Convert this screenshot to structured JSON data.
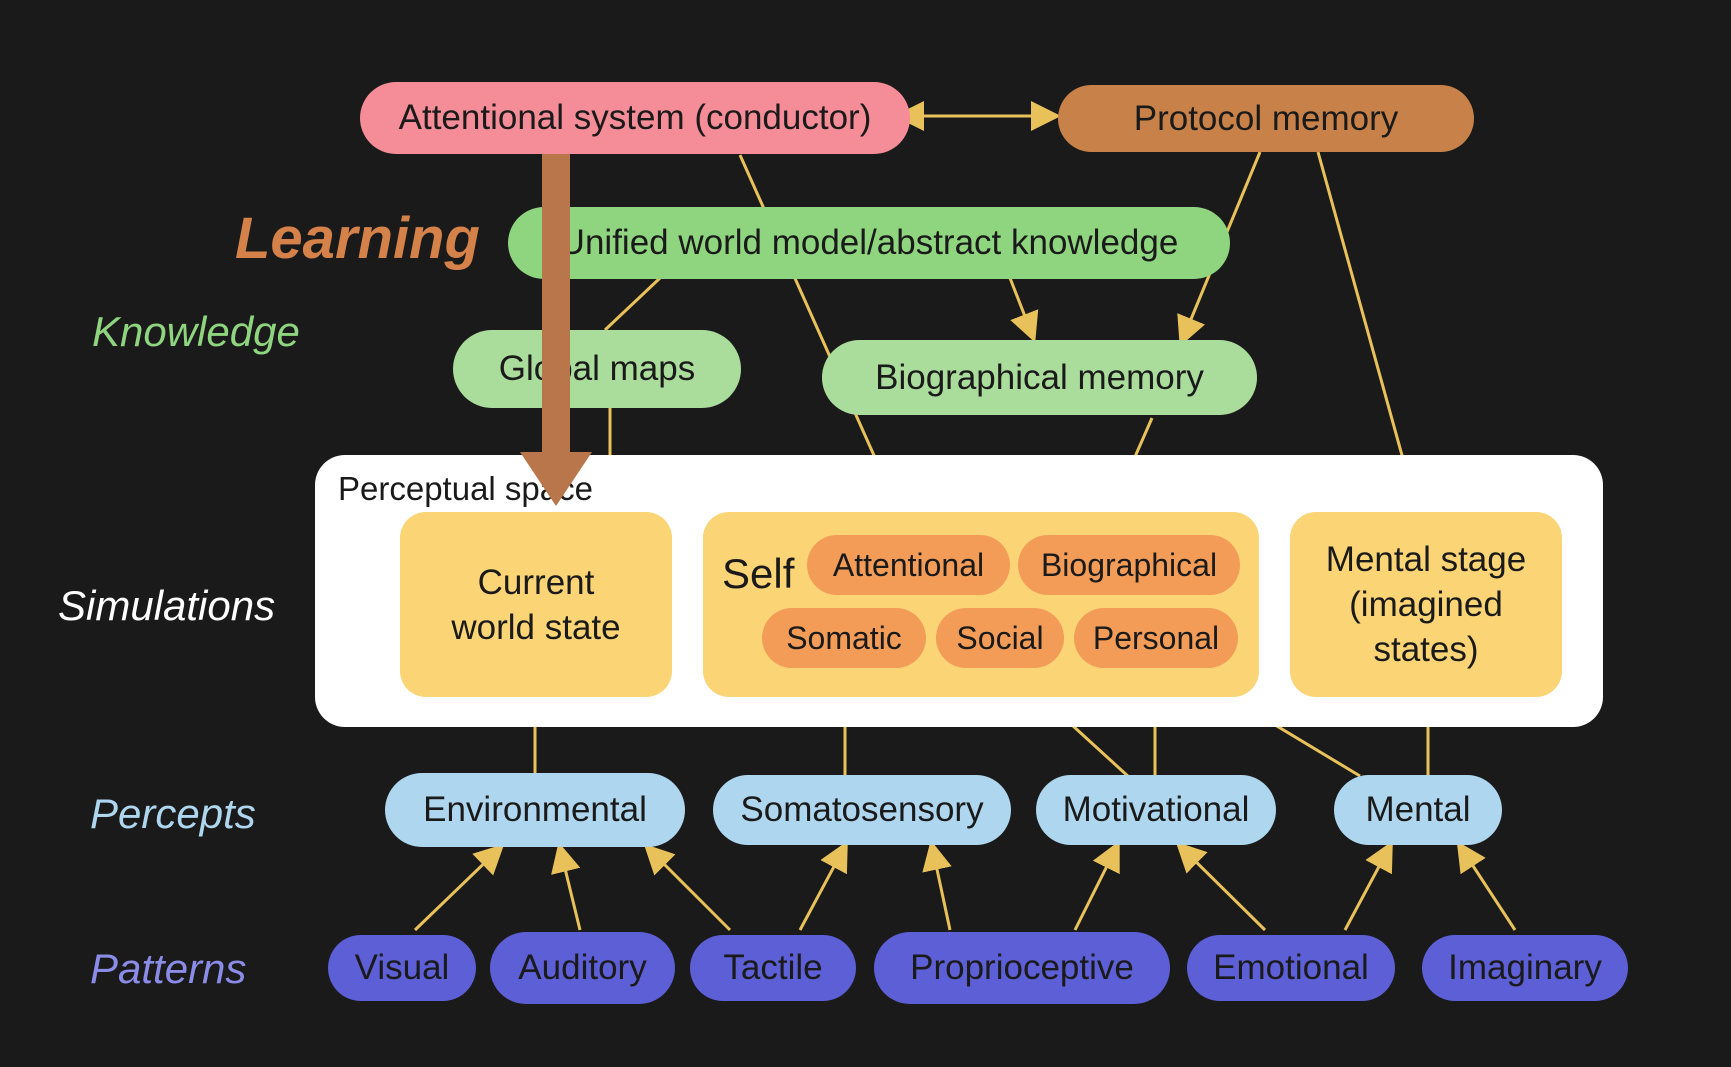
{
  "colors": {
    "background": "#1a1a1a",
    "attentional": "#f58d98",
    "protocol": "#c88249",
    "knowledge": "#8fd47e",
    "knowledge_light": "#aadc9b",
    "perceptual_bg": "#ffffff",
    "simulation": "#fad475",
    "self_item": "#f29c58",
    "percept": "#aed6ee",
    "pattern": "#5d5fd6",
    "arrow": "#e8c15a",
    "learning_arrow": "#b8764a"
  },
  "row_labels": {
    "learning": "Learning",
    "knowledge": "Knowledge",
    "simulations": "Simulations",
    "percepts": "Percepts",
    "patterns": "Patterns"
  },
  "top": {
    "attentional": "Attentional system (conductor)",
    "protocol": "Protocol memory"
  },
  "knowledge": {
    "world_model": "Unified world model/abstract knowledge",
    "global_maps": "Global maps",
    "biographical_memory": "Biographical memory"
  },
  "perceptual": {
    "title": "Perceptual space",
    "current_world": "Current\nworld state",
    "self_label": "Self",
    "self_items": [
      "Attentional",
      "Biographical",
      "Somatic",
      "Social",
      "Personal"
    ],
    "mental_stage": "Mental stage\n(imagined\nstates)"
  },
  "percepts": [
    "Environmental",
    "Somatosensory",
    "Motivational",
    "Mental"
  ],
  "patterns": [
    "Visual",
    "Auditory",
    "Tactile",
    "Proprioceptive",
    "Emotional",
    "Imaginary"
  ]
}
